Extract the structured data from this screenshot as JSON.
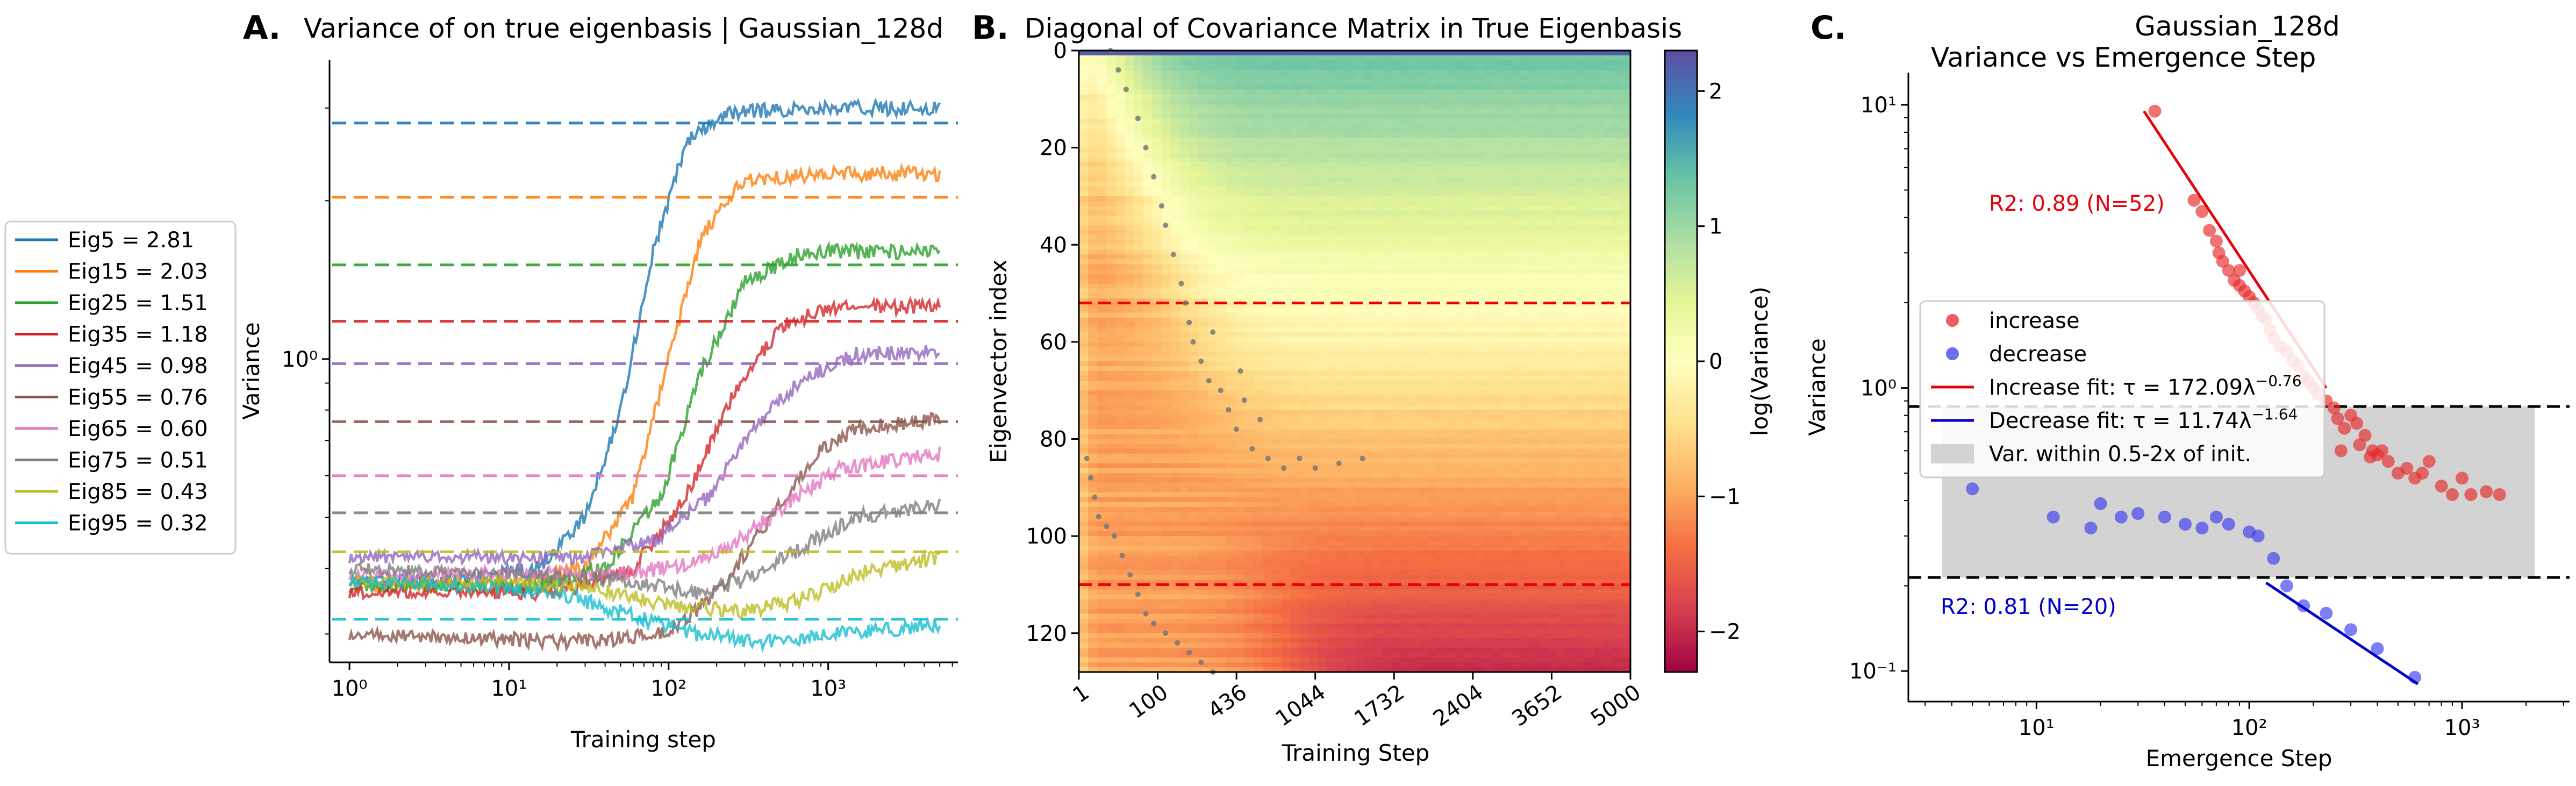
{
  "panels": {
    "a": {
      "letter": "A.",
      "title": "Variance of on true eigenbasis | Gaussian_128d"
    },
    "b": {
      "letter": "B.",
      "title": "Diagonal of Covariance Matrix in True Eigenbasis"
    },
    "c": {
      "letter": "C.",
      "title_line1": "Gaussian_128d",
      "title_line2": "Variance vs Emergence Step"
    }
  },
  "chart_data": [
    {
      "id": "A",
      "type": "line",
      "title": "Variance of on true eigenbasis | Gaussian_128d",
      "xlabel": "Training step",
      "ylabel": "Variance",
      "xscale": "log",
      "yscale": "log",
      "xlim": [
        0.75,
        6500
      ],
      "ylim": [
        0.265,
        3.7
      ],
      "xtick_labels": [
        "10⁰",
        "10¹",
        "10²",
        "10³"
      ],
      "xtick_values": [
        1,
        10,
        100,
        1000
      ],
      "ytick_labels": [
        "10⁰"
      ],
      "ytick_values": [
        1
      ],
      "legend_position": "outside-left",
      "series": [
        {
          "name": "Eig5 = 2.81",
          "target": 2.81,
          "color": "#1f77b4",
          "points": [
            [
              1,
              0.38
            ],
            [
              5,
              0.38
            ],
            [
              15,
              0.4
            ],
            [
              30,
              0.5
            ],
            [
              50,
              0.8
            ],
            [
              80,
              1.6
            ],
            [
              130,
              2.6
            ],
            [
              250,
              2.95
            ],
            [
              1000,
              3.0
            ],
            [
              5000,
              3.0
            ]
          ]
        },
        {
          "name": "Eig15 = 2.03",
          "target": 2.03,
          "color": "#ff7f0e",
          "points": [
            [
              1,
              0.37
            ],
            [
              10,
              0.37
            ],
            [
              30,
              0.4
            ],
            [
              60,
              0.55
            ],
            [
              100,
              1.0
            ],
            [
              160,
              1.7
            ],
            [
              300,
              2.2
            ],
            [
              1000,
              2.25
            ],
            [
              5000,
              2.25
            ]
          ]
        },
        {
          "name": "Eig25 = 1.51",
          "target": 1.51,
          "color": "#2ca02c",
          "points": [
            [
              1,
              0.37
            ],
            [
              15,
              0.37
            ],
            [
              40,
              0.4
            ],
            [
              90,
              0.55
            ],
            [
              160,
              0.95
            ],
            [
              300,
              1.4
            ],
            [
              700,
              1.6
            ],
            [
              5000,
              1.6
            ]
          ]
        },
        {
          "name": "Eig35 = 1.18",
          "target": 1.18,
          "color": "#d62728",
          "points": [
            [
              1,
              0.36
            ],
            [
              20,
              0.36
            ],
            [
              60,
              0.4
            ],
            [
              130,
              0.55
            ],
            [
              250,
              0.85
            ],
            [
              500,
              1.15
            ],
            [
              1000,
              1.25
            ],
            [
              5000,
              1.26
            ]
          ]
        },
        {
          "name": "Eig45 = 0.98",
          "target": 0.98,
          "color": "#9467bd",
          "points": [
            [
              1,
              0.42
            ],
            [
              30,
              0.42
            ],
            [
              80,
              0.45
            ],
            [
              180,
              0.55
            ],
            [
              350,
              0.75
            ],
            [
              700,
              0.92
            ],
            [
              1500,
              1.02
            ],
            [
              5000,
              1.04
            ]
          ]
        },
        {
          "name": "Eig55 = 0.76",
          "target": 0.76,
          "color": "#8c564b",
          "points": [
            [
              1,
              0.3
            ],
            [
              30,
              0.29
            ],
            [
              100,
              0.3
            ],
            [
              200,
              0.36
            ],
            [
              400,
              0.48
            ],
            [
              800,
              0.65
            ],
            [
              1500,
              0.74
            ],
            [
              5000,
              0.77
            ]
          ]
        },
        {
          "name": "Eig65 = 0.60",
          "target": 0.6,
          "color": "#e377c2",
          "points": [
            [
              1,
              0.39
            ],
            [
              50,
              0.39
            ],
            [
              150,
              0.41
            ],
            [
              300,
              0.46
            ],
            [
              600,
              0.54
            ],
            [
              1200,
              0.62
            ],
            [
              5000,
              0.66
            ]
          ]
        },
        {
          "name": "Eig75 = 0.51",
          "target": 0.51,
          "color": "#7f7f7f",
          "points": [
            [
              1,
              0.4
            ],
            [
              50,
              0.38
            ],
            [
              150,
              0.36
            ],
            [
              300,
              0.38
            ],
            [
              700,
              0.44
            ],
            [
              1500,
              0.5
            ],
            [
              5000,
              0.53
            ]
          ]
        },
        {
          "name": "Eig85 = 0.43",
          "target": 0.43,
          "color": "#bcbd22",
          "points": [
            [
              1,
              0.38
            ],
            [
              30,
              0.37
            ],
            [
              100,
              0.34
            ],
            [
              300,
              0.33
            ],
            [
              700,
              0.35
            ],
            [
              1500,
              0.39
            ],
            [
              5000,
              0.42
            ]
          ]
        },
        {
          "name": "Eig95 = 0.32",
          "target": 0.32,
          "color": "#17becf",
          "points": [
            [
              1,
              0.38
            ],
            [
              20,
              0.36
            ],
            [
              50,
              0.33
            ],
            [
              150,
              0.3
            ],
            [
              400,
              0.29
            ],
            [
              1000,
              0.3
            ],
            [
              5000,
              0.31
            ]
          ]
        }
      ]
    },
    {
      "id": "B",
      "type": "heatmap",
      "title": "Diagonal of Covariance Matrix in True Eigenbasis",
      "xlabel": "Training Step",
      "ylabel": "Eigenvector index",
      "colorbar_label": "log(Variance)",
      "xtick_labels": [
        "1",
        "100",
        "436",
        "1044",
        "1732",
        "2404",
        "3652",
        "5000"
      ],
      "ytick_values": [
        0,
        20,
        40,
        60,
        80,
        100,
        120
      ],
      "colorbar_ticks": [
        -2,
        -1,
        0,
        1,
        2
      ],
      "colorbar_range": [
        -2.3,
        2.3
      ],
      "rows": 128,
      "hlines_rows": [
        52,
        110
      ],
      "emergence_dots": [
        [
          0.4,
          0
        ],
        [
          0.5,
          4
        ],
        [
          0.6,
          8
        ],
        [
          0.75,
          14
        ],
        [
          0.85,
          20
        ],
        [
          0.95,
          26
        ],
        [
          1.05,
          32
        ],
        [
          1.1,
          36
        ],
        [
          1.2,
          42
        ],
        [
          1.3,
          48
        ],
        [
          1.35,
          52
        ],
        [
          1.4,
          56
        ],
        [
          1.45,
          60
        ],
        [
          1.55,
          64
        ],
        [
          1.65,
          68
        ],
        [
          1.8,
          70
        ],
        [
          1.9,
          74
        ],
        [
          2.0,
          78
        ],
        [
          2.2,
          82
        ],
        [
          2.4,
          84
        ],
        [
          2.6,
          86
        ],
        [
          2.8,
          84
        ],
        [
          3.0,
          86
        ],
        [
          3.3,
          85
        ],
        [
          3.6,
          84
        ],
        [
          0.1,
          84
        ],
        [
          0.15,
          88
        ],
        [
          0.2,
          92
        ],
        [
          0.25,
          96
        ],
        [
          0.35,
          98
        ],
        [
          0.45,
          100
        ],
        [
          0.55,
          104
        ],
        [
          0.65,
          108
        ],
        [
          0.75,
          112
        ],
        [
          0.85,
          116
        ],
        [
          0.95,
          118
        ],
        [
          1.1,
          120
        ],
        [
          1.25,
          122
        ],
        [
          1.4,
          124
        ],
        [
          1.55,
          126
        ],
        [
          1.7,
          128
        ],
        [
          2.1,
          72
        ],
        [
          2.3,
          76
        ],
        [
          1.7,
          58
        ],
        [
          2.05,
          66
        ]
      ]
    },
    {
      "id": "C",
      "type": "scatter",
      "title": "Gaussian_128d Variance vs Emergence Step",
      "xlabel": "Emergence Step",
      "ylabel": "Variance",
      "xscale": "log",
      "yscale": "log",
      "xlim": [
        2.5,
        3200
      ],
      "ylim": [
        0.078,
        13
      ],
      "xtick_labels": [
        "10¹",
        "10²",
        "10³"
      ],
      "xtick_values": [
        10,
        100,
        1000
      ],
      "ytick_labels": [
        "10⁻¹",
        "10⁰",
        "10¹"
      ],
      "ytick_values": [
        0.1,
        1,
        10
      ],
      "band": {
        "low": 0.214,
        "high": 0.86
      },
      "legend_position": "center-left",
      "legend": [
        {
          "label": "increase",
          "kind": "dot",
          "color": "#e8282a"
        },
        {
          "label": "decrease",
          "kind": "dot",
          "color": "#3b3bf0"
        },
        {
          "label": "Increase fit: τ = 172.09λ",
          "exponent": "−0.76",
          "kind": "line",
          "color": "#e8000b"
        },
        {
          "label": "Decrease fit: τ = 11.74λ",
          "exponent": "−1.64",
          "kind": "line",
          "color": "#0000cc"
        },
        {
          "label": "Var. within 0.5-2x of init.",
          "kind": "patch",
          "color": "#d3d3d3"
        }
      ],
      "annotations": [
        {
          "text": "R2: 0.89 (N=52)",
          "color": "#e8000b"
        },
        {
          "text": "R2: 0.81 (N=20)",
          "color": "#0000cc"
        }
      ],
      "fits": [
        {
          "name": "increase",
          "color": "#e8000b",
          "x": [
            32,
            230
          ],
          "y": [
            9.5,
            1.0
          ]
        },
        {
          "name": "decrease",
          "color": "#0000cc",
          "x": [
            120,
            620
          ],
          "y": [
            0.205,
            0.09
          ]
        }
      ],
      "increase_points": [
        [
          36,
          9.5
        ],
        [
          55,
          4.6
        ],
        [
          60,
          4.2
        ],
        [
          65,
          3.6
        ],
        [
          70,
          3.3
        ],
        [
          72,
          3.0
        ],
        [
          75,
          2.8
        ],
        [
          80,
          2.6
        ],
        [
          85,
          2.4
        ],
        [
          90,
          2.3
        ],
        [
          95,
          2.2
        ],
        [
          100,
          2.1
        ],
        [
          90,
          2.6
        ],
        [
          105,
          2.0
        ],
        [
          110,
          1.9
        ],
        [
          115,
          1.8
        ],
        [
          120,
          1.75
        ],
        [
          125,
          1.6
        ],
        [
          130,
          1.5
        ],
        [
          140,
          1.4
        ],
        [
          150,
          1.35
        ],
        [
          160,
          1.25
        ],
        [
          170,
          1.2
        ],
        [
          180,
          1.1
        ],
        [
          190,
          1.05
        ],
        [
          200,
          1.0
        ],
        [
          210,
          0.95
        ],
        [
          230,
          0.9
        ],
        [
          260,
          0.78
        ],
        [
          280,
          0.72
        ],
        [
          300,
          0.8
        ],
        [
          320,
          0.75
        ],
        [
          350,
          0.68
        ],
        [
          380,
          0.6
        ],
        [
          400,
          0.58
        ],
        [
          420,
          0.6
        ],
        [
          450,
          0.55
        ],
        [
          500,
          0.5
        ],
        [
          550,
          0.52
        ],
        [
          600,
          0.48
        ],
        [
          650,
          0.5
        ],
        [
          700,
          0.55
        ],
        [
          800,
          0.45
        ],
        [
          900,
          0.42
        ],
        [
          1000,
          0.48
        ],
        [
          1100,
          0.42
        ],
        [
          1300,
          0.43
        ],
        [
          1500,
          0.42
        ],
        [
          250,
          0.85
        ],
        [
          270,
          0.6
        ],
        [
          330,
          0.63
        ],
        [
          370,
          0.57
        ]
      ],
      "decrease_points": [
        [
          5,
          0.44
        ],
        [
          12,
          0.35
        ],
        [
          18,
          0.32
        ],
        [
          20,
          0.39
        ],
        [
          25,
          0.35
        ],
        [
          30,
          0.36
        ],
        [
          40,
          0.35
        ],
        [
          50,
          0.33
        ],
        [
          60,
          0.32
        ],
        [
          70,
          0.35
        ],
        [
          80,
          0.33
        ],
        [
          100,
          0.31
        ],
        [
          110,
          0.3
        ],
        [
          130,
          0.25
        ],
        [
          150,
          0.2
        ],
        [
          180,
          0.17
        ],
        [
          230,
          0.16
        ],
        [
          300,
          0.14
        ],
        [
          400,
          0.12
        ],
        [
          600,
          0.095
        ]
      ]
    }
  ]
}
